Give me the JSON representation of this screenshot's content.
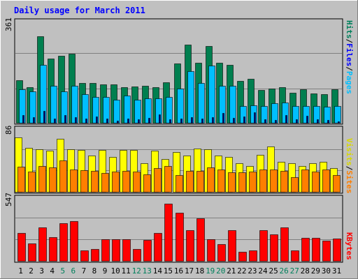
{
  "chart_data": {
    "type": "bar",
    "title": "Daily usage for March 2011",
    "categories": [
      "1",
      "2",
      "3",
      "4",
      "5",
      "6",
      "7",
      "8",
      "9",
      "10",
      "11",
      "12",
      "13",
      "14",
      "15",
      "16",
      "17",
      "18",
      "19",
      "20",
      "21",
      "22",
      "23",
      "24",
      "25",
      "26",
      "27",
      "28",
      "29",
      "30",
      "31"
    ],
    "weekend_days": [
      "5",
      "6",
      "12",
      "13",
      "19",
      "20",
      "26",
      "27"
    ],
    "panels": [
      {
        "id": "hits-files-pages",
        "ymax_label": "361",
        "ymax": 361,
        "side_labels": [
          "Pages",
          "Files",
          "Hits"
        ],
        "series": [
          {
            "name": "Hits",
            "color": "#007f4f",
            "values": [
              150,
              126,
              304,
              225,
              236,
              244,
              140,
              140,
              134,
              134,
              126,
              128,
              129,
              126,
              143,
              208,
              276,
              210,
              271,
              211,
              203,
              147,
              155,
              115,
              120,
              125,
              105,
              117,
              103,
              100,
              117
            ]
          },
          {
            "name": "Files",
            "color": "#00bfff",
            "values": [
              118,
              110,
              205,
              130,
              110,
              129,
              100,
              90,
              90,
              80,
              95,
              80,
              87,
              87,
              90,
              120,
              181,
              140,
              202,
              130,
              130,
              60,
              62,
              58,
              68,
              70,
              60,
              59,
              58,
              56,
              60
            ]
          },
          {
            "name": "Pages",
            "color": "#00007f",
            "values": [
              28,
              20,
              42,
              14,
              28,
              20,
              14,
              22,
              14,
              8,
              14,
              12,
              18,
              30,
              12,
              14,
              20,
              15,
              20,
              35,
              18,
              22,
              38,
              12,
              9,
              26,
              13,
              25,
              12,
              10,
              6
            ]
          }
        ]
      },
      {
        "id": "visits-sites",
        "ymax_label": "86",
        "ymax": 86,
        "side_labels": [
          "Sites",
          "Visits"
        ],
        "series": [
          {
            "name": "Visits",
            "color": "#ffff00",
            "values": [
              73,
              59,
              57,
              55,
              71,
              57,
              56,
              49,
              56,
              47,
              56,
              56,
              38,
              55,
              44,
              53,
              49,
              58,
              57,
              49,
              47,
              38,
              35,
              50,
              61,
              40,
              38,
              35,
              38,
              40,
              32
            ]
          },
          {
            "name": "Sites",
            "color": "#ff7f00",
            "values": [
              34,
              27,
              35,
              33,
              42,
              30,
              29,
              28,
              25,
              27,
              28,
              27,
              23,
              32,
              35,
              22,
              28,
              28,
              33,
              30,
              26,
              26,
              27,
              30,
              30,
              28,
              20,
              30,
              27,
              30,
              22
            ]
          }
        ]
      },
      {
        "id": "kbytes",
        "ymax_label": "547",
        "ymax": 547,
        "side_labels": [
          "KBytes"
        ],
        "series": [
          {
            "name": "KBytes",
            "color": "#ff0000",
            "values": [
              240,
              150,
              285,
              200,
              320,
              340,
              88,
              100,
              185,
              185,
              185,
              100,
              180,
              240,
              490,
              410,
              260,
              365,
              185,
              140,
              260,
              75,
              90,
              260,
              225,
              285,
              90,
              195,
              195,
              170,
              190
            ]
          }
        ]
      }
    ]
  }
}
